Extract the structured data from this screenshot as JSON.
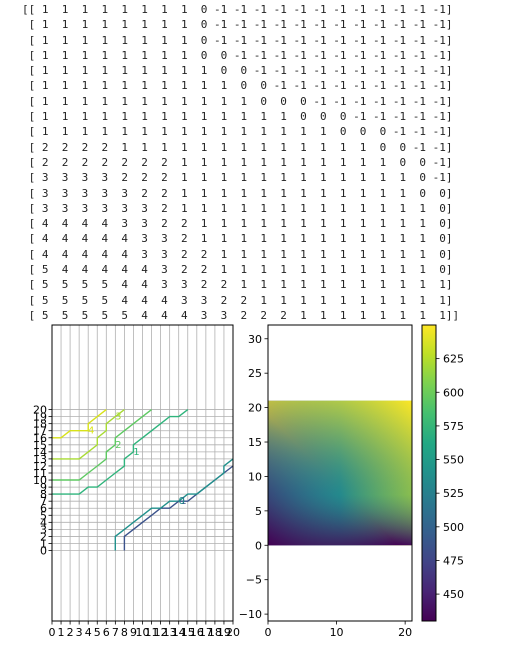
{
  "matrix_lines": [
    "[[ 1  1  1  1  1  1  1  1  0 -1 -1 -1 -1 -1 -1 -1 -1 -1 -1 -1 -1]",
    " [ 1  1  1  1  1  1  1  1  0 -1 -1 -1 -1 -1 -1 -1 -1 -1 -1 -1 -1]",
    " [ 1  1  1  1  1  1  1  1  0 -1 -1 -1 -1 -1 -1 -1 -1 -1 -1 -1 -1]",
    " [ 1  1  1  1  1  1  1  1  0  0 -1 -1 -1 -1 -1 -1 -1 -1 -1 -1 -1]",
    " [ 1  1  1  1  1  1  1  1  1  0  0 -1 -1 -1 -1 -1 -1 -1 -1 -1 -1]",
    " [ 1  1  1  1  1  1  1  1  1  1  0  0 -1 -1 -1 -1 -1 -1 -1 -1 -1]",
    " [ 1  1  1  1  1  1  1  1  1  1  1  0  0  0 -1 -1 -1 -1 -1 -1 -1]",
    " [ 1  1  1  1  1  1  1  1  1  1  1  1  1  0  0  0 -1 -1 -1 -1 -1]",
    " [ 1  1  1  1  1  1  1  1  1  1  1  1  1  1  1  0  0  0 -1 -1 -1]",
    " [ 2  2  2  2  1  1  1  1  1  1  1  1  1  1  1  1  1  0  0 -1 -1]",
    " [ 2  2  2  2  2  2  2  1  1  1  1  1  1  1  1  1  1  1  0  0 -1]",
    " [ 3  3  3  3  2  2  2  1  1  1  1  1  1  1  1  1  1  1  1  0 -1]",
    " [ 3  3  3  3  3  2  2  1  1  1  1  1  1  1  1  1  1  1  1  0  0]",
    " [ 3  3  3  3  3  3  2  1  1  1  1  1  1  1  1  1  1  1  1  1  0]",
    " [ 4  4  4  4  3  3  2  2  1  1  1  1  1  1  1  1  1  1  1  1  0]",
    " [ 4  4  4  4  4  3  3  2  1  1  1  1  1  1  1  1  1  1  1  1  0]",
    " [ 4  4  4  4  4  3  3  2  2  1  1  1  1  1  1  1  1  1  1  1  0]",
    " [ 5  4  4  4  4  4  3  2  2  1  1  1  1  1  1  1  1  1  1  1  0]",
    " [ 5  5  5  5  4  4  3  3  2  2  1  1  1  1  1  1  1  1  1  1  1]",
    " [ 5  5  5  5  4  4  4  3  3  2  2  1  1  1  1  1  1  1  1  1  1]",
    " [ 5  5  5  5  5  4  4  4  3  3  2  2  2  1  1  1  1  1  1  1  1]]"
  ],
  "chart_data": [
    {
      "type": "contour",
      "x_ticks": [
        0,
        1,
        2,
        3,
        4,
        5,
        6,
        7,
        8,
        9,
        10,
        11,
        12,
        13,
        14,
        15,
        16,
        17,
        18,
        19,
        20
      ],
      "y_ticks": [
        0,
        1,
        2,
        3,
        4,
        5,
        6,
        7,
        8,
        9,
        10,
        11,
        12,
        13,
        14,
        15,
        16,
        17,
        18,
        19,
        20
      ],
      "xlim": [
        0,
        20
      ],
      "ylim": [
        -10,
        32
      ],
      "grid": true,
      "contour_levels": [
        {
          "level": "-1",
          "color": "#3b528b",
          "points": [
            [
              8,
              0
            ],
            [
              8,
              2
            ],
            [
              9,
              3
            ],
            [
              10,
              4
            ],
            [
              11,
              5
            ],
            [
              12,
              6
            ],
            [
              13,
              6
            ],
            [
              14,
              7
            ],
            [
              15,
              7
            ],
            [
              16,
              8
            ],
            [
              17,
              9
            ],
            [
              18,
              10
            ],
            [
              19,
              11
            ],
            [
              20,
              12
            ]
          ]
        },
        {
          "level": "0",
          "color": "#21918c",
          "points": [
            [
              7,
              0
            ],
            [
              7,
              2
            ],
            [
              8,
              3
            ],
            [
              9,
              4
            ],
            [
              10,
              5
            ],
            [
              11,
              6
            ],
            [
              12,
              6
            ],
            [
              13,
              7
            ],
            [
              14,
              7
            ],
            [
              15,
              8
            ],
            [
              16,
              8
            ],
            [
              17,
              9
            ],
            [
              18,
              10
            ],
            [
              19,
              11
            ],
            [
              19,
              12
            ],
            [
              20,
              13
            ]
          ]
        },
        {
          "level": "1",
          "color": "#2fb47c",
          "points": [
            [
              0,
              8
            ],
            [
              3,
              8
            ],
            [
              4,
              9
            ],
            [
              5,
              9
            ],
            [
              6,
              10
            ],
            [
              7,
              11
            ],
            [
              8,
              12
            ],
            [
              8,
              13
            ],
            [
              9,
              14
            ],
            [
              9,
              15
            ],
            [
              10,
              16
            ],
            [
              11,
              17
            ],
            [
              12,
              18
            ],
            [
              13,
              19
            ],
            [
              14,
              19
            ],
            [
              15,
              20
            ]
          ]
        },
        {
          "level": "2",
          "color": "#5ec962",
          "points": [
            [
              0,
              10
            ],
            [
              3,
              10
            ],
            [
              4,
              11
            ],
            [
              5,
              12
            ],
            [
              6,
              13
            ],
            [
              6,
              14
            ],
            [
              7,
              15
            ],
            [
              7,
              16
            ],
            [
              8,
              17
            ],
            [
              9,
              18
            ],
            [
              10,
              19
            ],
            [
              11,
              20
            ]
          ]
        },
        {
          "level": "3",
          "color": "#a8db34",
          "points": [
            [
              0,
              13
            ],
            [
              3,
              13
            ],
            [
              4,
              14
            ],
            [
              5,
              15
            ],
            [
              5,
              16
            ],
            [
              6,
              17
            ],
            [
              6,
              18
            ],
            [
              7,
              19
            ],
            [
              8,
              20
            ]
          ]
        },
        {
          "level": "4",
          "color": "#d8e219",
          "points": [
            [
              0,
              16
            ],
            [
              1,
              16
            ],
            [
              2,
              17
            ],
            [
              4,
              17
            ],
            [
              4,
              18
            ],
            [
              5,
              19
            ],
            [
              6,
              20
            ]
          ]
        }
      ],
      "inline_labels": [
        "4",
        "3",
        "2",
        "1",
        "0",
        "-1"
      ]
    },
    {
      "type": "heatmap",
      "colormap": "viridis",
      "x_ticks": [
        0,
        10,
        20
      ],
      "y_ticks": [
        -10,
        -5,
        0,
        5,
        10,
        15,
        20,
        25,
        30
      ],
      "xlim": [
        0,
        21
      ],
      "ylim": [
        -11,
        32
      ],
      "image_extent": [
        0,
        21,
        0,
        21
      ],
      "value_range": [
        430,
        650
      ],
      "colorbar_ticks": [
        450,
        475,
        500,
        525,
        550,
        575,
        600,
        625
      ]
    }
  ]
}
